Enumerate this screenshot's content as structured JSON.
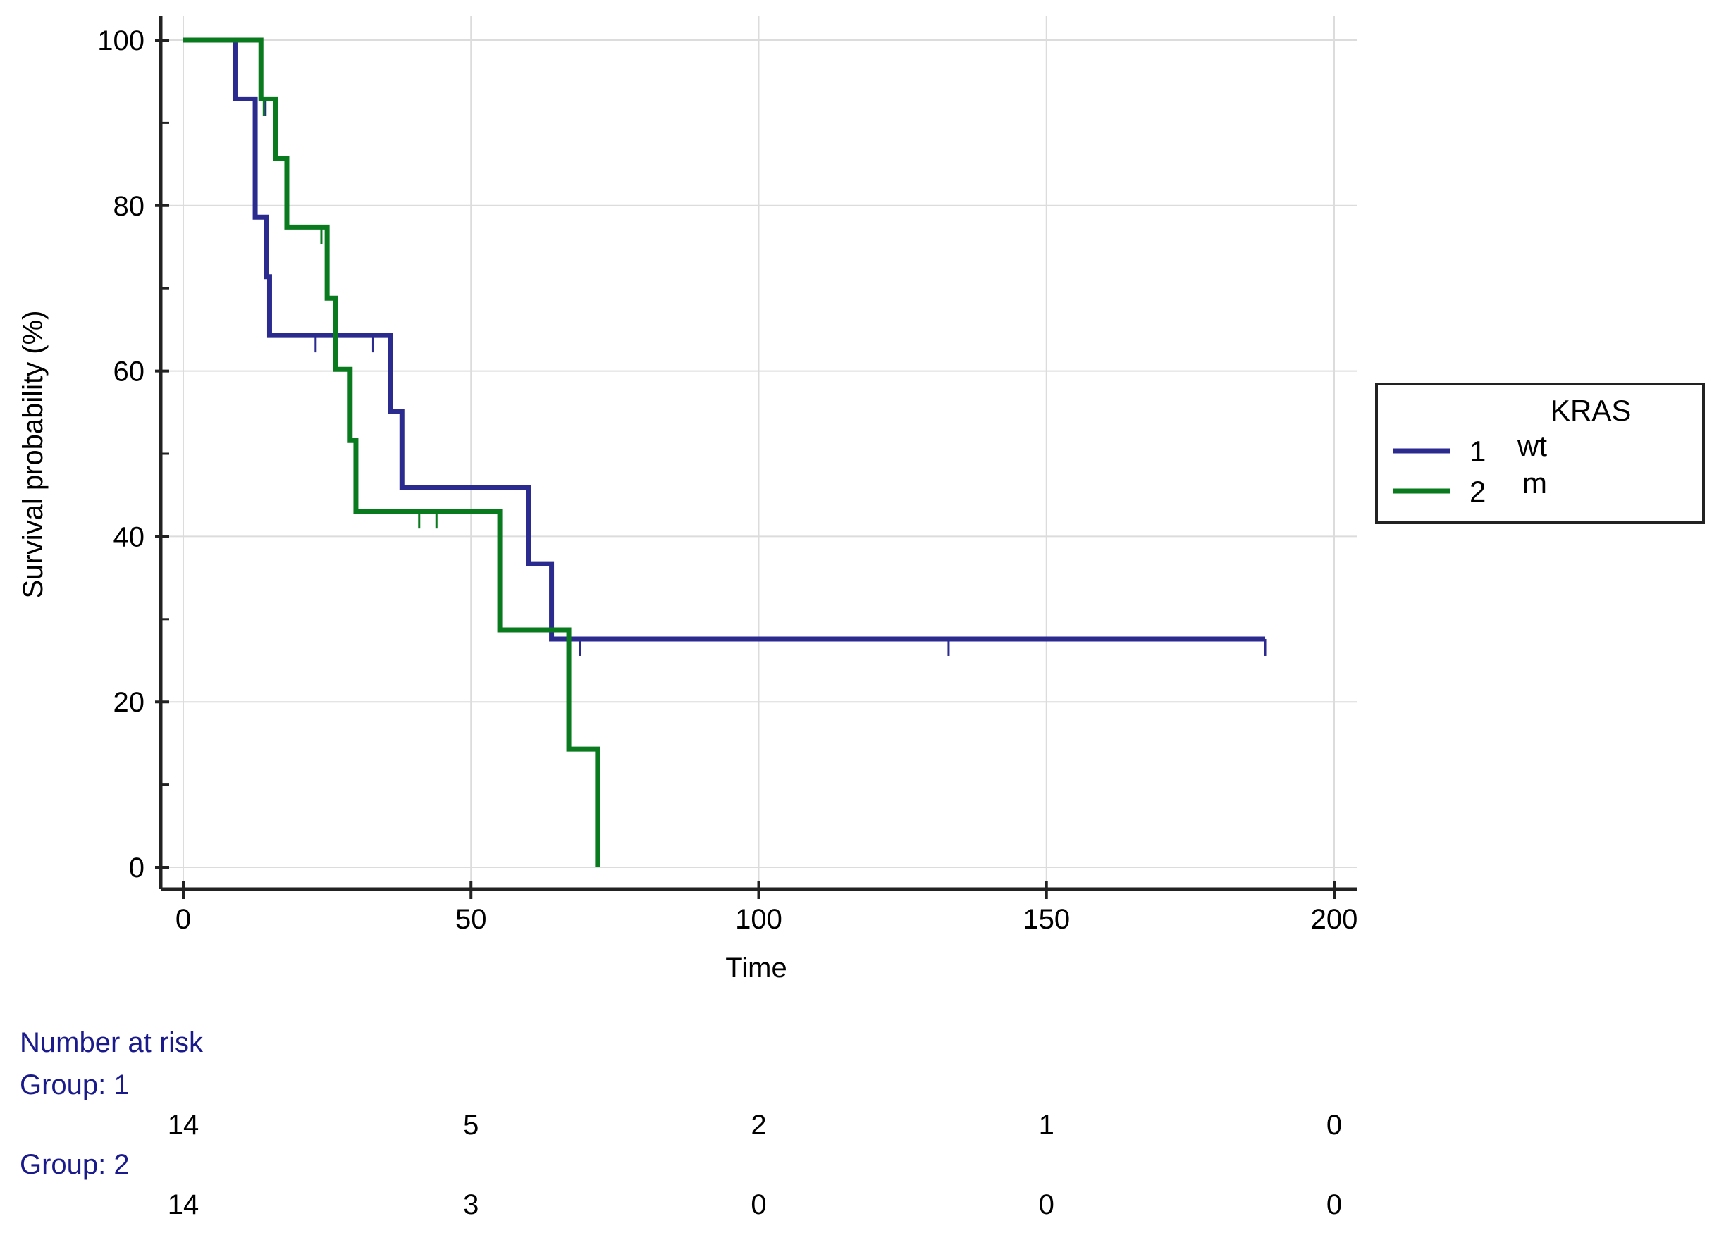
{
  "chart_data": {
    "type": "line",
    "subtype": "kaplan-meier",
    "xlabel": "Time",
    "ylabel": "Survival probability (%)",
    "xlim": [
      0,
      200
    ],
    "ylim": [
      0,
      100
    ],
    "x_ticks": [
      0,
      50,
      100,
      150,
      200
    ],
    "y_ticks": [
      0,
      20,
      40,
      60,
      80,
      100
    ],
    "grid": true,
    "legend": {
      "title": "KRAS",
      "position": "right",
      "entries": [
        {
          "id": "1",
          "label": "wt"
        },
        {
          "id": "2",
          "label": "m"
        }
      ]
    },
    "series": [
      {
        "name": "1",
        "label": "wt",
        "color": "#2b2b8f",
        "steps": [
          [
            0,
            100
          ],
          [
            9,
            92.9
          ],
          [
            12.5,
            78.6
          ],
          [
            14.5,
            71.4
          ],
          [
            15,
            64.3
          ],
          [
            36,
            55.1
          ],
          [
            38,
            45.9
          ],
          [
            60,
            36.7
          ],
          [
            64,
            27.6
          ],
          [
            188,
            27.6
          ]
        ],
        "censored": [
          [
            14.3,
            92.9
          ],
          [
            23,
            64.3
          ],
          [
            33,
            64.3
          ],
          [
            69,
            27.6
          ],
          [
            133,
            27.6
          ],
          [
            188,
            27.6
          ]
        ]
      },
      {
        "name": "2",
        "label": "m",
        "color": "#0a7a1e",
        "steps": [
          [
            0,
            100
          ],
          [
            13.5,
            92.9
          ],
          [
            16,
            85.7
          ],
          [
            18,
            77.4
          ],
          [
            25,
            68.8
          ],
          [
            26.5,
            60.2
          ],
          [
            29,
            51.6
          ],
          [
            30,
            43
          ],
          [
            55,
            28.7
          ],
          [
            67,
            14.3
          ],
          [
            72,
            0
          ]
        ],
        "censored": [
          [
            14,
            92.9
          ],
          [
            24,
            77.4
          ],
          [
            41,
            43
          ],
          [
            44,
            43
          ]
        ]
      }
    ],
    "number_at_risk": {
      "title": "Number at risk",
      "times": [
        0,
        50,
        100,
        150,
        200
      ],
      "groups": [
        {
          "label": "Group: 1",
          "values": [
            "14",
            "5",
            "2",
            "1",
            "0"
          ]
        },
        {
          "label": "Group: 2",
          "values": [
            "14",
            "3",
            "0",
            "0",
            "0"
          ]
        }
      ]
    }
  }
}
